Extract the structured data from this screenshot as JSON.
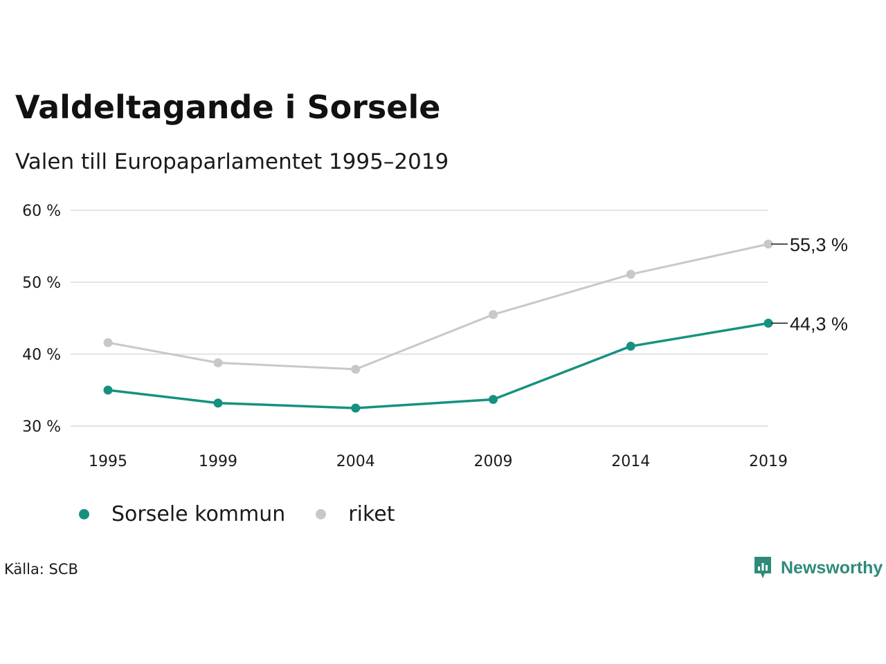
{
  "header": {
    "title": "Valdeltagande i Sorsele",
    "subtitle": "Valen till Europaparlamentet 1995–2019"
  },
  "chart_data": {
    "type": "line",
    "x": [
      1995,
      1999,
      2004,
      2009,
      2014,
      2019
    ],
    "x_tick_labels": [
      "1995",
      "1999",
      "2004",
      "2009",
      "2014",
      "2019"
    ],
    "y_ticks": [
      30,
      40,
      50,
      60
    ],
    "y_tick_labels": [
      "30 %",
      "40 %",
      "50 %",
      "60 %"
    ],
    "ylim": [
      30,
      60
    ],
    "grid": true,
    "legend_position": "bottom-left",
    "series": [
      {
        "name": "Sorsele kommun",
        "color": "#17917f",
        "values": [
          35.0,
          33.2,
          32.5,
          33.7,
          41.1,
          44.3
        ],
        "end_label": "44,3 %"
      },
      {
        "name": "riket",
        "color": "#c8c8c8",
        "values": [
          41.6,
          38.8,
          37.9,
          45.5,
          51.1,
          55.3
        ],
        "end_label": "55,3 %"
      }
    ]
  },
  "footer": {
    "source": "Källa: SCB",
    "brand": "Newsworthy",
    "brand_icon": "newsworthy-logo-icon",
    "brand_color": "#2e8b78"
  }
}
